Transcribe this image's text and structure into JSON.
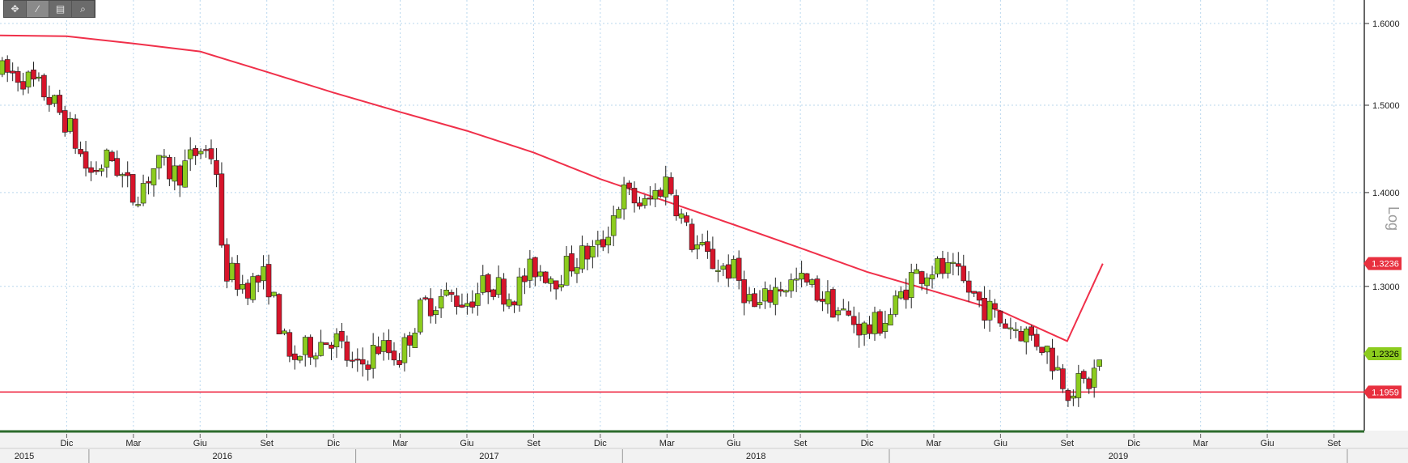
{
  "toolbar": {
    "items": [
      {
        "name": "crosshair-icon",
        "glyph": "✥"
      },
      {
        "name": "draw-line-icon",
        "glyph": "∕"
      },
      {
        "name": "document-icon",
        "glyph": "▤"
      },
      {
        "name": "zoom-icon",
        "glyph": "⌕"
      }
    ],
    "active_index": 1
  },
  "chart_data": {
    "type": "candlestick",
    "y_scale_label": "Log",
    "log_scale": true,
    "ylim": [
      1.16,
      1.63
    ],
    "y_ticks": [
      "1.6000",
      "1.5000",
      "1.4000",
      "1.3000"
    ],
    "x_month_labels": [
      {
        "label": "Dic",
        "t": 2
      },
      {
        "label": "Mar",
        "t": 5
      },
      {
        "label": "Giu",
        "t": 8
      },
      {
        "label": "Set",
        "t": 11
      },
      {
        "label": "Dic",
        "t": 14
      },
      {
        "label": "Mar",
        "t": 17
      },
      {
        "label": "Giu",
        "t": 20
      },
      {
        "label": "Set",
        "t": 23
      },
      {
        "label": "Dic",
        "t": 26
      },
      {
        "label": "Mar",
        "t": 29
      },
      {
        "label": "Giu",
        "t": 32
      },
      {
        "label": "Set",
        "t": 35
      },
      {
        "label": "Dic",
        "t": 38
      },
      {
        "label": "Mar",
        "t": 41
      },
      {
        "label": "Giu",
        "t": 44
      },
      {
        "label": "Set",
        "t": 47
      },
      {
        "label": "Dic",
        "t": 50
      },
      {
        "label": "Mar",
        "t": 53
      },
      {
        "label": "Giu",
        "t": 56
      },
      {
        "label": "Set",
        "t": 59
      }
    ],
    "x_year_labels": [
      {
        "label": "2015",
        "t_start": -1,
        "t_end": 3
      },
      {
        "label": "2016",
        "t_start": 3,
        "t_end": 15
      },
      {
        "label": "2017",
        "t_start": 15,
        "t_end": 27
      },
      {
        "label": "2018",
        "t_start": 27,
        "t_end": 39
      },
      {
        "label": "2019",
        "t_start": 39,
        "t_end": 59.6
      }
    ],
    "x_range": [
      -1,
      59.6
    ],
    "anchors": [
      {
        "t": -1,
        "v": 1.54
      },
      {
        "t": 0,
        "v": 1.535
      },
      {
        "t": 1,
        "v": 1.515
      },
      {
        "t": 2,
        "v": 1.48
      },
      {
        "t": 3,
        "v": 1.42
      },
      {
        "t": 4,
        "v": 1.44
      },
      {
        "t": 5,
        "v": 1.395
      },
      {
        "t": 6,
        "v": 1.43
      },
      {
        "t": 7,
        "v": 1.42
      },
      {
        "t": 8,
        "v": 1.45
      },
      {
        "t": 8.7,
        "v": 1.44
      },
      {
        "t": 9,
        "v": 1.32
      },
      {
        "t": 10,
        "v": 1.3
      },
      {
        "t": 11,
        "v": 1.31
      },
      {
        "t": 12,
        "v": 1.225
      },
      {
        "t": 13,
        "v": 1.24
      },
      {
        "t": 14,
        "v": 1.25
      },
      {
        "t": 15,
        "v": 1.215
      },
      {
        "t": 16,
        "v": 1.24
      },
      {
        "t": 17,
        "v": 1.23
      },
      {
        "t": 18,
        "v": 1.28
      },
      {
        "t": 19,
        "v": 1.29
      },
      {
        "t": 20,
        "v": 1.285
      },
      {
        "t": 21,
        "v": 1.305
      },
      {
        "t": 22,
        "v": 1.29
      },
      {
        "t": 23,
        "v": 1.32
      },
      {
        "t": 24,
        "v": 1.31
      },
      {
        "t": 25,
        "v": 1.33
      },
      {
        "t": 26,
        "v": 1.34
      },
      {
        "t": 27,
        "v": 1.4
      },
      {
        "t": 28,
        "v": 1.385
      },
      {
        "t": 29,
        "v": 1.415
      },
      {
        "t": 30,
        "v": 1.35
      },
      {
        "t": 31,
        "v": 1.325
      },
      {
        "t": 32,
        "v": 1.315
      },
      {
        "t": 33,
        "v": 1.275
      },
      {
        "t": 34,
        "v": 1.3
      },
      {
        "t": 35,
        "v": 1.305
      },
      {
        "t": 36,
        "v": 1.29
      },
      {
        "t": 37,
        "v": 1.27
      },
      {
        "t": 38,
        "v": 1.255
      },
      {
        "t": 39,
        "v": 1.27
      },
      {
        "t": 40,
        "v": 1.31
      },
      {
        "t": 41,
        "v": 1.32
      },
      {
        "t": 42,
        "v": 1.31
      },
      {
        "t": 43,
        "v": 1.285
      },
      {
        "t": 44,
        "v": 1.265
      },
      {
        "t": 45,
        "v": 1.255
      },
      {
        "t": 46,
        "v": 1.24
      },
      {
        "t": 47,
        "v": 1.2
      },
      {
        "t": 48,
        "v": 1.205
      },
      {
        "t": 48.6,
        "v": 1.2326
      }
    ],
    "ma_line": {
      "color": "#f0304a",
      "points": [
        {
          "t": -1,
          "v": 1.585
        },
        {
          "t": 2,
          "v": 1.584
        },
        {
          "t": 5,
          "v": 1.575
        },
        {
          "t": 8,
          "v": 1.565
        },
        {
          "t": 11,
          "v": 1.54
        },
        {
          "t": 14,
          "v": 1.515
        },
        {
          "t": 17,
          "v": 1.492
        },
        {
          "t": 20,
          "v": 1.47
        },
        {
          "t": 23,
          "v": 1.445
        },
        {
          "t": 26,
          "v": 1.415
        },
        {
          "t": 29,
          "v": 1.39
        },
        {
          "t": 32,
          "v": 1.365
        },
        {
          "t": 35,
          "v": 1.34
        },
        {
          "t": 38,
          "v": 1.315
        },
        {
          "t": 41,
          "v": 1.295
        },
        {
          "t": 44,
          "v": 1.275
        },
        {
          "t": 47,
          "v": 1.245
        },
        {
          "t": 48.6,
          "v": 1.3236
        }
      ]
    },
    "support_line": {
      "value": 1.1959,
      "color": "#f0304a"
    },
    "price_tags": [
      {
        "label": "1.3236",
        "value": 1.3236,
        "color": "#e8303f",
        "text_color": "#ffffff"
      },
      {
        "label": "1.2326",
        "value": 1.2326,
        "color": "#8ccc1e",
        "text_color": "#000000"
      },
      {
        "label": "1.1959",
        "value": 1.1959,
        "color": "#e8303f",
        "text_color": "#ffffff"
      }
    ],
    "up_color": "#8ccc1e",
    "down_color": "#d7142a",
    "grid": true
  }
}
